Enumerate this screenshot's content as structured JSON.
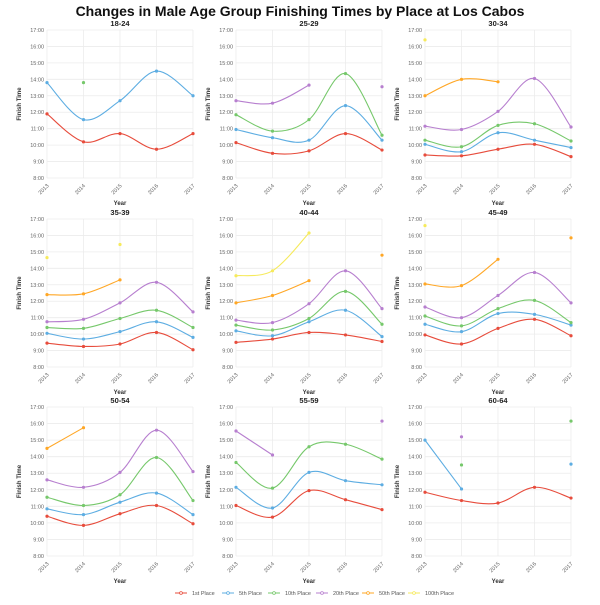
{
  "chart_data": {
    "type": "line",
    "title": "Changes in Male Age Group Finishing Times by Place at Los Cabos",
    "xlabel": "Year",
    "ylabel": "Finish Time",
    "x": [
      "2013",
      "2014",
      "2015",
      "2016",
      "2017"
    ],
    "ylim": [
      8,
      17
    ],
    "yticks": [
      "8:00",
      "9:00",
      "10:00",
      "11:00",
      "12:00",
      "13:00",
      "14:00",
      "15:00",
      "16:00",
      "17:00"
    ],
    "value_units": "minutes (decimal)",
    "grid": true,
    "legend_position": "bottom",
    "legend": [
      "1st Place",
      "5th Place",
      "10th Place",
      "20th Place",
      "50th Place",
      "100th Place"
    ],
    "colors": [
      "#e74c3c",
      "#5dade2",
      "#76c86b",
      "#b77fcf",
      "#ffa726",
      "#f6ea5c"
    ],
    "panels": [
      {
        "title": "18-24",
        "series": [
          [
            11.9,
            10.2,
            10.7,
            9.75,
            10.7
          ],
          [
            13.8,
            11.55,
            12.7,
            14.5,
            13.0
          ],
          [
            null,
            13.8,
            null,
            null,
            null
          ],
          null,
          null,
          null
        ]
      },
      {
        "title": "25-29",
        "series": [
          [
            10.15,
            9.5,
            9.65,
            10.7,
            9.7
          ],
          [
            10.95,
            10.45,
            10.3,
            12.4,
            10.3
          ],
          [
            11.85,
            10.85,
            11.55,
            14.35,
            10.6
          ],
          [
            12.7,
            12.55,
            13.65,
            null,
            13.55
          ],
          null,
          null
        ]
      },
      {
        "title": "30-34",
        "series": [
          [
            9.4,
            9.35,
            9.75,
            10.05,
            9.3
          ],
          [
            10.05,
            9.6,
            10.75,
            10.3,
            9.85
          ],
          [
            10.3,
            9.9,
            11.2,
            11.3,
            10.25
          ],
          [
            11.15,
            10.95,
            12.05,
            14.05,
            11.1
          ],
          [
            13.0,
            14.0,
            13.85,
            null,
            null
          ],
          [
            16.4,
            null,
            null,
            null,
            null
          ]
        ]
      },
      {
        "title": "35-39",
        "series": [
          [
            9.45,
            9.25,
            9.4,
            10.1,
            9.05
          ],
          [
            10.05,
            9.7,
            10.15,
            10.75,
            9.8
          ],
          [
            10.4,
            10.35,
            10.95,
            11.45,
            10.4
          ],
          [
            10.75,
            10.9,
            11.9,
            13.15,
            11.35
          ],
          [
            12.4,
            12.45,
            13.3,
            null,
            null
          ],
          [
            14.65,
            null,
            15.45,
            null,
            null
          ]
        ]
      },
      {
        "title": "40-44",
        "series": [
          [
            9.5,
            9.7,
            10.1,
            9.95,
            9.55
          ],
          [
            10.2,
            9.9,
            10.75,
            11.45,
            9.85
          ],
          [
            10.55,
            10.25,
            10.95,
            12.6,
            10.6
          ],
          [
            10.85,
            10.7,
            11.85,
            13.85,
            11.55
          ],
          [
            11.9,
            12.35,
            13.25,
            null,
            14.8
          ],
          [
            13.55,
            13.85,
            16.15,
            null,
            null
          ]
        ]
      },
      {
        "title": "45-49",
        "series": [
          [
            9.95,
            9.4,
            10.35,
            10.9,
            9.9
          ],
          [
            10.6,
            10.15,
            11.25,
            11.2,
            10.55
          ],
          [
            11.1,
            10.5,
            11.55,
            12.05,
            10.7
          ],
          [
            11.65,
            11.0,
            12.35,
            13.75,
            11.9
          ],
          [
            13.05,
            12.95,
            14.55,
            null,
            15.85
          ],
          [
            16.6,
            null,
            null,
            null,
            null
          ]
        ]
      },
      {
        "title": "50-54",
        "series": [
          [
            10.4,
            9.85,
            10.55,
            11.05,
            9.95
          ],
          [
            10.85,
            10.5,
            11.25,
            11.8,
            10.5
          ],
          [
            11.55,
            11.05,
            11.7,
            13.95,
            11.35
          ],
          [
            12.6,
            12.15,
            13.05,
            15.6,
            13.1
          ],
          [
            14.5,
            15.75,
            null,
            null,
            null
          ],
          null
        ]
      },
      {
        "title": "55-59",
        "series": [
          [
            11.05,
            10.35,
            11.95,
            11.4,
            10.8
          ],
          [
            12.15,
            10.9,
            13.05,
            12.55,
            12.3
          ],
          [
            13.65,
            12.1,
            14.6,
            14.75,
            13.85
          ],
          [
            15.55,
            14.1,
            null,
            null,
            16.15
          ],
          null,
          null
        ]
      },
      {
        "title": "60-64",
        "series": [
          [
            11.85,
            11.35,
            11.2,
            12.15,
            11.5
          ],
          [
            15.0,
            12.05,
            null,
            null,
            13.55
          ],
          [
            null,
            13.5,
            null,
            null,
            16.15
          ],
          [
            null,
            15.2,
            null,
            null,
            null
          ],
          null,
          null
        ]
      }
    ]
  }
}
